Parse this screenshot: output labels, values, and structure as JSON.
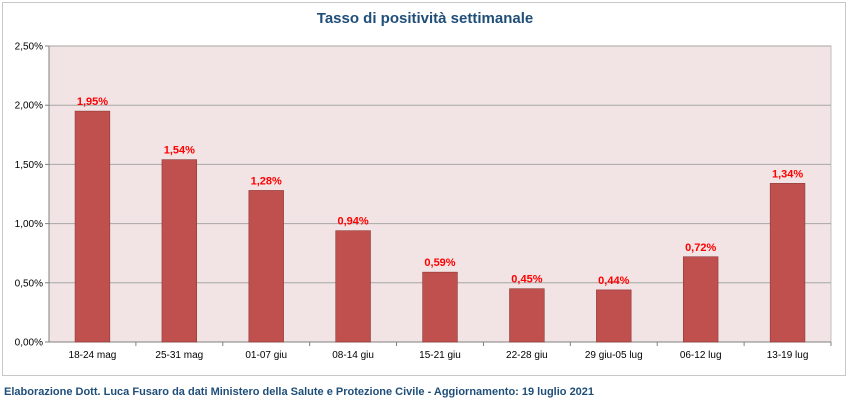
{
  "chart_data": {
    "type": "bar",
    "title": "Tasso di positività settimanale",
    "categories": [
      "18-24 mag",
      "25-31 mag",
      "01-07 giu",
      "08-14 giu",
      "15-21 giu",
      "22-28 giu",
      "29 giu-05 lug",
      "06-12 lug",
      "13-19 lug"
    ],
    "values": [
      1.95,
      1.54,
      1.28,
      0.94,
      0.59,
      0.45,
      0.44,
      0.72,
      1.34
    ],
    "data_labels": [
      "1,95%",
      "1,54%",
      "1,28%",
      "0,94%",
      "0,59%",
      "0,45%",
      "0,44%",
      "0,72%",
      "1,34%"
    ],
    "y_ticks": [
      "0,00%",
      "0,50%",
      "1,00%",
      "1,50%",
      "2,00%",
      "2,50%"
    ],
    "ylim": [
      0,
      2.5
    ],
    "xlabel": "",
    "ylabel": "",
    "grid": true,
    "legend": "none",
    "colors": {
      "bar": "#c0504d",
      "bar_border": "#8c3836",
      "plot_background": "#f2e4e4",
      "data_label": "#ff0000",
      "title": "#1f4e79"
    }
  },
  "footer": "Elaborazione Dott. Luca Fusaro da dati Ministero della Salute e Protezione Civile - Aggiornamento: 19 luglio 2021"
}
